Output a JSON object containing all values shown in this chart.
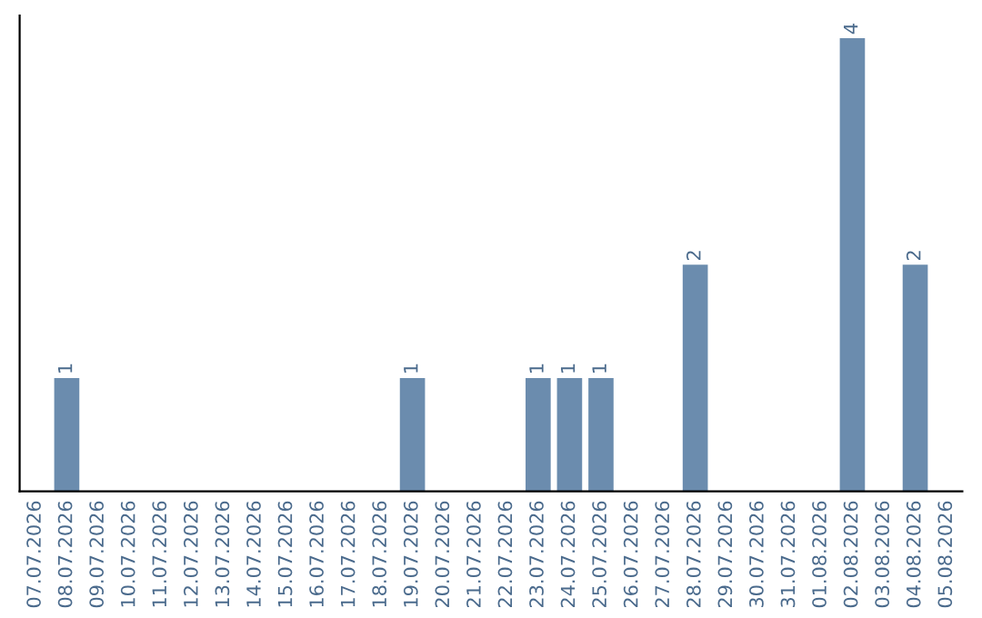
{
  "chart_data": {
    "type": "bar",
    "categories": [
      "07.07.2026",
      "08.07.2026",
      "09.07.2026",
      "10.07.2026",
      "11.07.2026",
      "12.07.2026",
      "13.07.2026",
      "14.07.2026",
      "15.07.2026",
      "16.07.2026",
      "17.07.2026",
      "18.07.2026",
      "19.07.2026",
      "20.07.2026",
      "21.07.2026",
      "22.07.2026",
      "23.07.2026",
      "24.07.2026",
      "25.07.2026",
      "26.07.2026",
      "27.07.2026",
      "28.07.2026",
      "29.07.2026",
      "30.07.2026",
      "31.07.2026",
      "01.08.2026",
      "02.08.2026",
      "03.08.2026",
      "04.08.2026",
      "05.08.2026"
    ],
    "values": [
      0,
      1,
      0,
      0,
      0,
      0,
      0,
      0,
      0,
      0,
      0,
      0,
      1,
      0,
      0,
      0,
      1,
      1,
      1,
      0,
      0,
      2,
      0,
      0,
      0,
      0,
      4,
      0,
      2,
      0
    ],
    "value_labels": [
      null,
      "1",
      null,
      null,
      null,
      null,
      null,
      null,
      null,
      null,
      null,
      null,
      "1",
      null,
      null,
      null,
      "1",
      "1",
      "1",
      null,
      null,
      "2",
      null,
      null,
      null,
      null,
      "4",
      null,
      "2",
      null
    ],
    "color": "#6b8cae",
    "ylim": [
      0,
      4.2
    ],
    "tick_labels": "x",
    "grid": false,
    "legend": false
  }
}
